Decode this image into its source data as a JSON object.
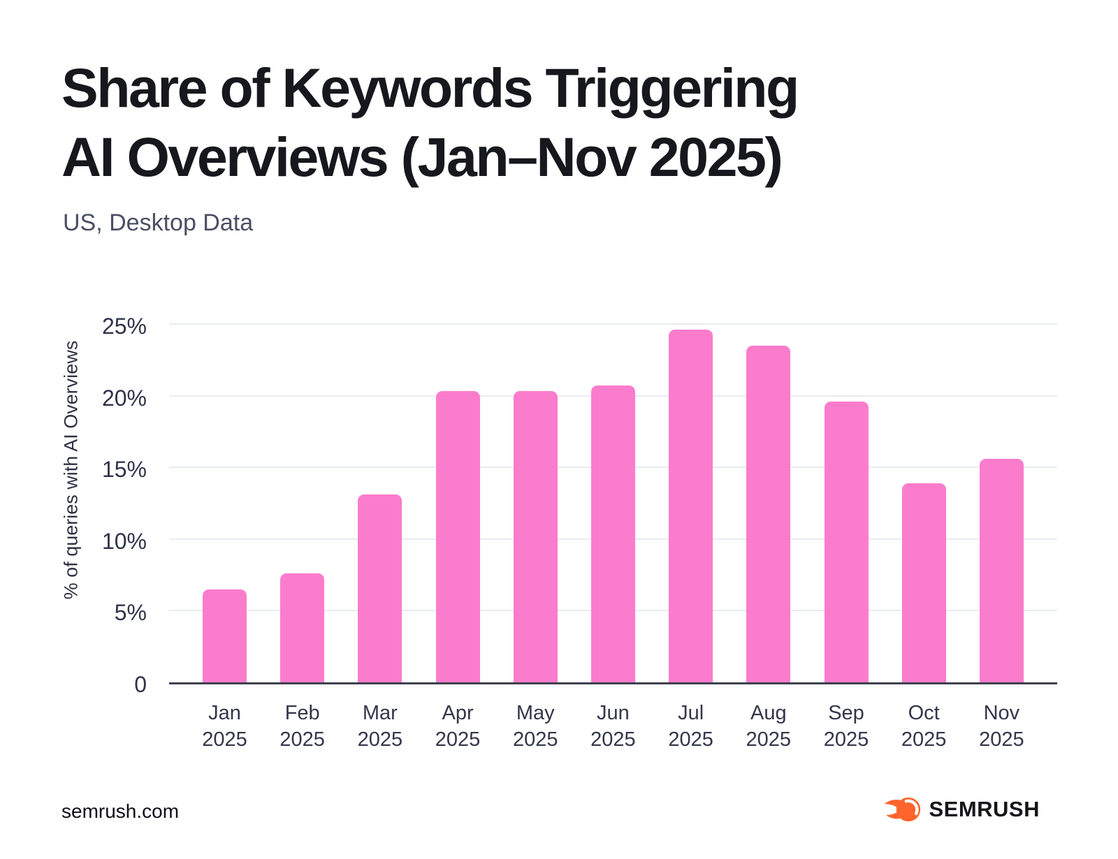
{
  "header": {
    "title_line1": "Share of Keywords Triggering",
    "title_line2": "AI Overviews (Jan–Nov 2025)",
    "subtitle": "US, Desktop Data"
  },
  "chart_data": {
    "type": "bar",
    "title": "Share of Keywords Triggering AI Overviews (Jan–Nov 2025)",
    "subtitle": "US, Desktop Data",
    "categories": [
      "Jan 2025",
      "Feb 2025",
      "Mar 2025",
      "Apr 2025",
      "May 2025",
      "Jun 2025",
      "Jul 2025",
      "Aug 2025",
      "Sep 2025",
      "Oct 2025",
      "Nov 2025"
    ],
    "values": [
      6.5,
      7.6,
      13.1,
      20.3,
      20.3,
      20.7,
      24.6,
      23.5,
      19.6,
      13.9,
      15.6
    ],
    "unit": "%",
    "xlabel": "",
    "ylabel": "% of queries with AI Overviews",
    "ylim": [
      0,
      26.8
    ],
    "yticks": [
      {
        "value": 25,
        "label": "25%"
      },
      {
        "value": 20,
        "label": "20%"
      },
      {
        "value": 15,
        "label": "15%"
      },
      {
        "value": 10,
        "label": "10%"
      },
      {
        "value": 5,
        "label": "5%"
      },
      {
        "value": 0,
        "label": "0"
      }
    ],
    "grid": true,
    "legend": false
  },
  "colors": {
    "bar": "#FB7CCC",
    "grid": "#E8EBF3",
    "axis": "#3E4150",
    "title": "#17181D",
    "subtitle": "#4B4E62",
    "tick": "#30334A",
    "logo_orange": "#FF642D",
    "logo_text": "#15151A"
  },
  "footer": {
    "website": "semrush.com",
    "logo_text": "SEMRUSH"
  }
}
